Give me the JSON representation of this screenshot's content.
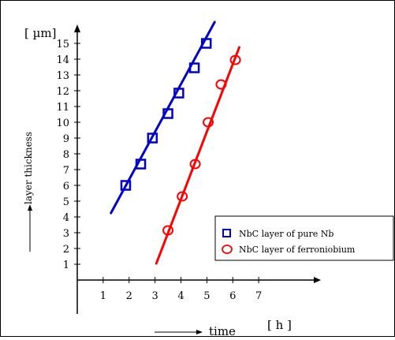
{
  "chart_data": {
    "type": "scatter",
    "ylabel_unit": "[ µm]",
    "ylabel": "layer thickness",
    "xlabel": "time",
    "xlabel_unit": "[ h ]",
    "x_ticks": [
      "1",
      "2",
      "3",
      "4",
      "5",
      "6",
      "7"
    ],
    "y_ticks": [
      "1",
      "2",
      "3",
      "4",
      "5",
      "6",
      "7",
      "8",
      "9",
      "10",
      "11",
      "12",
      "13",
      "14",
      "15"
    ],
    "x_range": [
      0,
      8.5
    ],
    "y_range": [
      0,
      16.8
    ],
    "grid": false,
    "legend_position": "lower-right",
    "series": [
      {
        "name": "NbC layer of pure Nb",
        "marker": "square",
        "color": "#0000cc",
        "x": [
          1.87,
          2.45,
          2.9,
          3.5,
          3.92,
          4.52,
          4.98
        ],
        "y": [
          6.0,
          7.35,
          9.0,
          10.55,
          11.85,
          13.45,
          15.0
        ],
        "fit": [
          [
            1.3,
            4.25
          ],
          [
            5.3,
            16.35
          ]
        ]
      },
      {
        "name": "NbC layer of ferroniobium",
        "marker": "circle",
        "color": "#ff0000",
        "x": [
          3.5,
          4.05,
          4.55,
          5.05,
          5.55,
          6.1
        ],
        "y": [
          3.15,
          5.3,
          7.35,
          10.0,
          12.4,
          13.95
        ],
        "fit": [
          [
            3.05,
            1.05
          ],
          [
            6.25,
            14.75
          ]
        ]
      }
    ]
  }
}
